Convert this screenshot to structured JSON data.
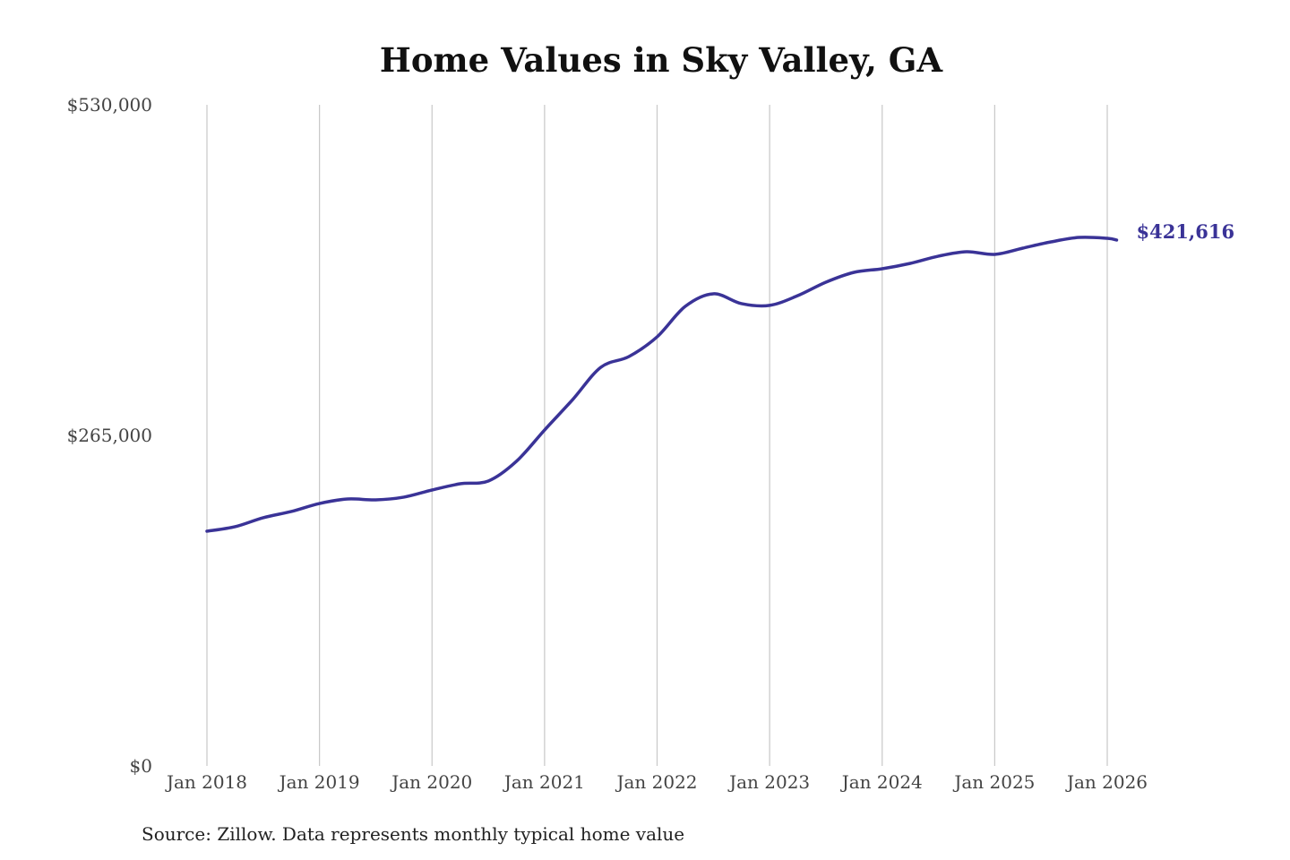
{
  "chart_data": {
    "type": "line",
    "title": "Home Values in Sky Valley, GA",
    "xlabel": "",
    "ylabel": "",
    "source": "Source: Zillow. Data represents monthly typical home value",
    "ylim": [
      0,
      530000
    ],
    "yticks": [
      0,
      265000,
      530000
    ],
    "ytick_labels": [
      "$0",
      "$265,000",
      "$530,000"
    ],
    "xticks": [
      "2018-01",
      "2019-01",
      "2020-01",
      "2021-01",
      "2022-01",
      "2023-01",
      "2024-01",
      "2025-01",
      "2026-01"
    ],
    "xtick_labels": [
      "Jan 2018",
      "Jan 2019",
      "Jan 2020",
      "Jan 2021",
      "Jan 2022",
      "Jan 2023",
      "Jan 2024",
      "Jan 2025",
      "Jan 2026"
    ],
    "grid": "vertical",
    "line_color": "#3a3397",
    "end_label": "$421,616",
    "series": [
      {
        "x": [
          "2018-01",
          "2018-04",
          "2018-07",
          "2018-10",
          "2019-01",
          "2019-04",
          "2019-07",
          "2019-10",
          "2020-01",
          "2020-04",
          "2020-07",
          "2020-10",
          "2021-01",
          "2021-04",
          "2021-07",
          "2021-10",
          "2022-01",
          "2022-04",
          "2022-07",
          "2022-10",
          "2023-01",
          "2023-04",
          "2023-07",
          "2023-10",
          "2024-01",
          "2024-04",
          "2024-07",
          "2024-10",
          "2025-01",
          "2025-04",
          "2025-07",
          "2025-10",
          "2026-01",
          "2026-02"
        ],
        "y": [
          188200,
          191800,
          199000,
          204000,
          210400,
          214000,
          213300,
          215500,
          221200,
          226200,
          228400,
          244200,
          269300,
          293700,
          319600,
          328200,
          344000,
          368400,
          378500,
          370600,
          369200,
          377000,
          387800,
          395700,
          398600,
          402900,
          408700,
          412200,
          410100,
          415100,
          420100,
          423700,
          423000,
          421616
        ]
      }
    ]
  }
}
